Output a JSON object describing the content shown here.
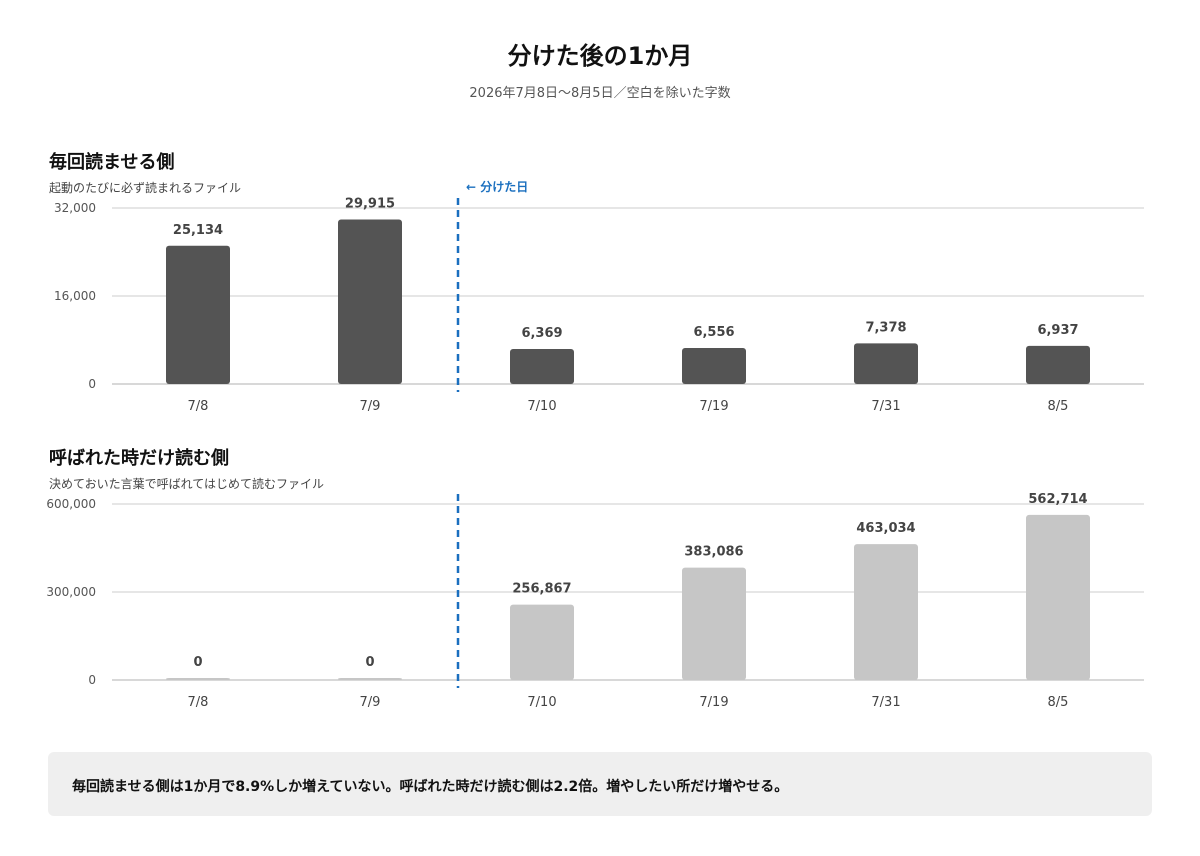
{
  "title": "分けた後の1か月",
  "subtitle": "2026年7月8日〜8月5日／空白を除いた字数",
  "split_marker_label": "← 分けた日",
  "summary": "毎回読ませる側は1か月で8.9%しか増えていない。呼ばれた時だけ読む側は2.2倍。増やしたい所だけ増やせる。",
  "colors": {
    "always_bar": "#545454",
    "on_demand_bar": "#c6c6c6",
    "split_marker": "#1a6fbf",
    "grid": "#cccccc"
  },
  "chart_data": [
    {
      "type": "bar",
      "title": "毎回読ませる側",
      "subtitle": "起動のたびに必ず読まれるファイル",
      "categories": [
        "7/8",
        "7/9",
        "7/10",
        "7/19",
        "7/31",
        "8/5"
      ],
      "values": [
        25134,
        29915,
        6369,
        6556,
        7378,
        6937
      ],
      "value_labels": [
        "25,134",
        "29,915",
        "6,369",
        "6,556",
        "7,378",
        "6,937"
      ],
      "ylim": [
        0,
        32000
      ],
      "yticks": [
        0,
        16000,
        32000
      ],
      "ytick_labels": [
        "0",
        "16,000",
        "32,000"
      ],
      "grid": true,
      "split_after_category": "7/9"
    },
    {
      "type": "bar",
      "title": "呼ばれた時だけ読む側",
      "subtitle": "決めておいた言葉で呼ばれてはじめて読むファイル",
      "categories": [
        "7/8",
        "7/9",
        "7/10",
        "7/19",
        "7/31",
        "8/5"
      ],
      "values": [
        0,
        0,
        256867,
        383086,
        463034,
        562714
      ],
      "value_labels": [
        "0",
        "0",
        "256,867",
        "383,086",
        "463,034",
        "562,714"
      ],
      "ylim": [
        0,
        600000
      ],
      "yticks": [
        0,
        300000,
        600000
      ],
      "ytick_labels": [
        "0",
        "300,000",
        "600,000"
      ],
      "grid": true,
      "split_after_category": "7/9"
    }
  ]
}
